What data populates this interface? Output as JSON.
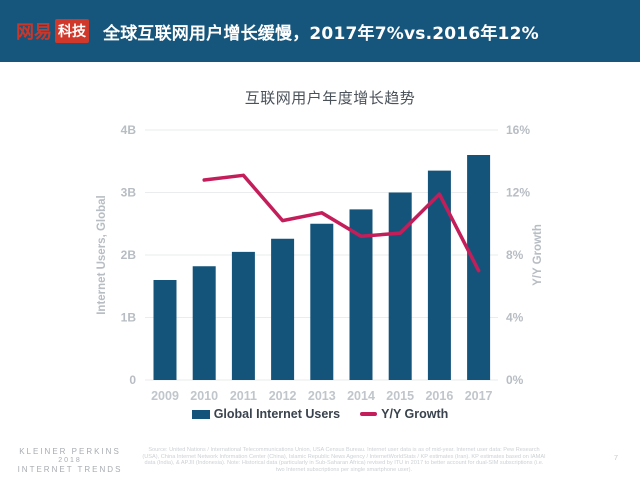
{
  "header": {
    "logo_primary": "网易",
    "logo_secondary": "科技",
    "title": "全球互联网用户增长缓慢，2017年7%vs.2016年12%"
  },
  "chart_data": {
    "type": "bar",
    "title": "互联网用户年度增长趋势",
    "categories": [
      "2009",
      "2010",
      "2011",
      "2012",
      "2013",
      "2014",
      "2015",
      "2016",
      "2017"
    ],
    "series": [
      {
        "name": "Global Internet Users",
        "type": "bar",
        "axis": "left",
        "unit": "B users",
        "color": "#15547a",
        "values": [
          1.6,
          1.82,
          2.05,
          2.26,
          2.5,
          2.73,
          3.0,
          3.35,
          3.6
        ]
      },
      {
        "name": "Y/Y Growth",
        "type": "line",
        "axis": "right",
        "unit": "%",
        "color": "#c41e5a",
        "values": [
          null,
          12.8,
          13.1,
          10.2,
          10.7,
          9.2,
          9.4,
          11.9,
          7.0
        ]
      }
    ],
    "left_axis": {
      "label": "Internet Users, Global",
      "min": 0,
      "max": 4,
      "tick_labels": [
        "0",
        "1B",
        "2B",
        "3B",
        "4B"
      ]
    },
    "right_axis": {
      "label": "Y/Y Growth",
      "min": 0,
      "max": 16,
      "tick_labels": [
        "0%",
        "4%",
        "8%",
        "12%",
        "16%"
      ]
    },
    "grid": true,
    "legend_position": "bottom"
  },
  "legend": {
    "bar_label": "Global Internet Users",
    "line_label": "Y/Y Growth"
  },
  "footer": {
    "brand_line1": "KLEINER PERKINS",
    "brand_line2": "2018",
    "brand_line3": "INTERNET TRENDS",
    "source": "Source: United Nations / International Telecommunications Union, USA Census Bureau. Internet user data is as of mid-year. Internet user data: Pew Research (USA), China Internet Network Information Center (China), Islamic Republic News Agency / InternetWorldStats / KP estimates (Iran). KP estimates based on IAMAI data (India), & APJII (Indonesia). Note: Historical data (particularly in Sub-Saharan Africa) revised by ITU in 2017 to better account for dual-SIM subscriptions (i.e. two Internet subscriptions per single smartphone user).",
    "page_number": "7"
  },
  "colors": {
    "header_bg": "#16567c",
    "logo_red": "#cf382a",
    "bar": "#15547a",
    "line": "#c41e5a",
    "gridline": "#eaecee",
    "tick_text": "#b7bdc3",
    "year_text": "#c0c6cb",
    "legend_text": "#3a434d"
  }
}
